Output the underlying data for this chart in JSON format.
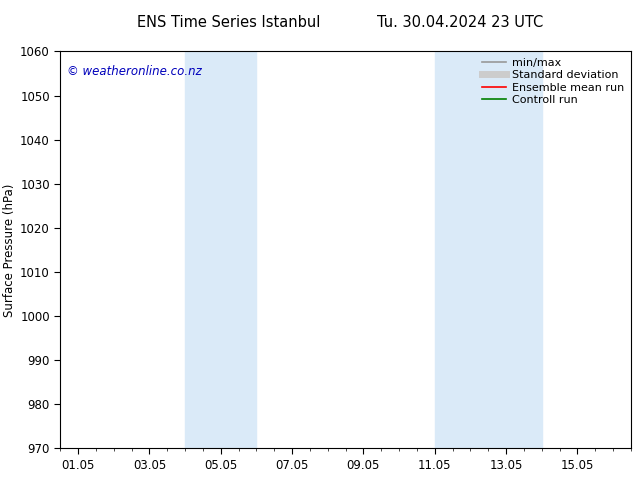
{
  "title_left": "ENS Time Series Istanbul",
  "title_right": "Tu. 30.04.2024 23 UTC",
  "ylabel": "Surface Pressure (hPa)",
  "ylim": [
    970,
    1060
  ],
  "yticks": [
    970,
    980,
    990,
    1000,
    1010,
    1020,
    1030,
    1040,
    1050,
    1060
  ],
  "xtick_labels": [
    "01.05",
    "03.05",
    "05.05",
    "07.05",
    "09.05",
    "11.05",
    "13.05",
    "15.05"
  ],
  "xtick_positions": [
    0,
    2,
    4,
    6,
    8,
    10,
    12,
    14
  ],
  "xlim": [
    -0.5,
    15.5
  ],
  "shaded_bands": [
    {
      "x_start": 3.0,
      "x_end": 5.0
    },
    {
      "x_start": 10.0,
      "x_end": 13.0
    }
  ],
  "shaded_color": "#daeaf8",
  "watermark": "© weatheronline.co.nz",
  "watermark_color": "#0000bb",
  "bg_color": "#ffffff",
  "plot_bg_color": "#ffffff",
  "legend_items": [
    {
      "label": "min/max",
      "color": "#999999",
      "lw": 1.2,
      "style": "-"
    },
    {
      "label": "Standard deviation",
      "color": "#cccccc",
      "lw": 5,
      "style": "-"
    },
    {
      "label": "Ensemble mean run",
      "color": "#ff0000",
      "lw": 1.2,
      "style": "-"
    },
    {
      "label": "Controll run",
      "color": "#008000",
      "lw": 1.2,
      "style": "-"
    }
  ],
  "axis_color": "#000000",
  "tick_color": "#000000",
  "font_size": 8.5,
  "title_font_size": 10.5
}
